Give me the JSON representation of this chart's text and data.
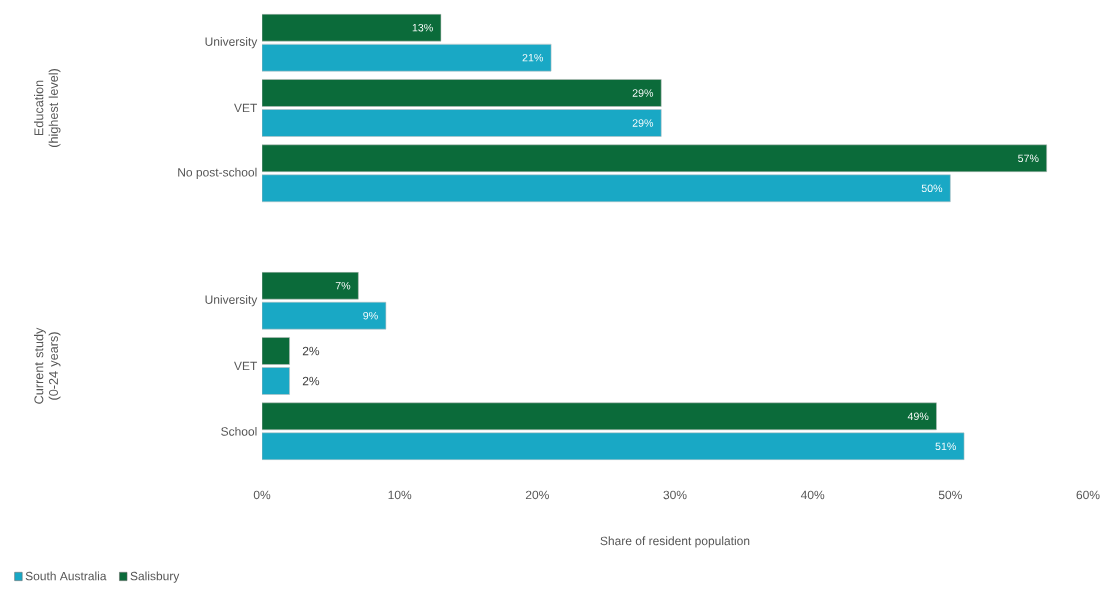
{
  "chart_data": [
    {
      "type": "bar",
      "orientation": "horizontal",
      "ylabel": "Education (highest level)",
      "categories": [
        "University",
        "VET",
        "No post-school"
      ],
      "xlim": [
        0,
        60
      ],
      "tick_labels": "y",
      "series": [
        {
          "color": "#19a8c5",
          "values": [
            21,
            29,
            50
          ],
          "value_labels": [
            "21%",
            "29%",
            "50%"
          ]
        },
        {
          "color": "#0b6b3a",
          "values": [
            13,
            29,
            57
          ],
          "value_labels": [
            "13%",
            "29%",
            "57%"
          ]
        }
      ]
    },
    {
      "type": "bar",
      "orientation": "horizontal",
      "ylabel": "Current study (0-24 years)",
      "xlabel": "Share of resident population",
      "categories": [
        "University",
        "VET",
        "School"
      ],
      "xlim": [
        0,
        60
      ],
      "xticks": [
        {
          "value": 0,
          "label": "0%"
        },
        {
          "value": 10,
          "label": "10%"
        },
        {
          "value": 20,
          "label": "20%"
        },
        {
          "value": 30,
          "label": "30%"
        },
        {
          "value": 40,
          "label": "40%"
        },
        {
          "value": 50,
          "label": "50%"
        },
        {
          "value": 60,
          "label": "60%"
        }
      ],
      "legend": "bottom left",
      "series": [
        {
          "name": "South Australia",
          "color": "#19a8c5",
          "values": [
            9,
            2,
            51
          ],
          "value_labels": [
            "9%",
            "2%",
            "51%"
          ]
        },
        {
          "name": "Salisbury",
          "color": "#0b6b3a",
          "values": [
            7,
            2,
            49
          ],
          "value_labels": [
            "7%",
            "2%",
            "49%"
          ]
        }
      ]
    }
  ]
}
